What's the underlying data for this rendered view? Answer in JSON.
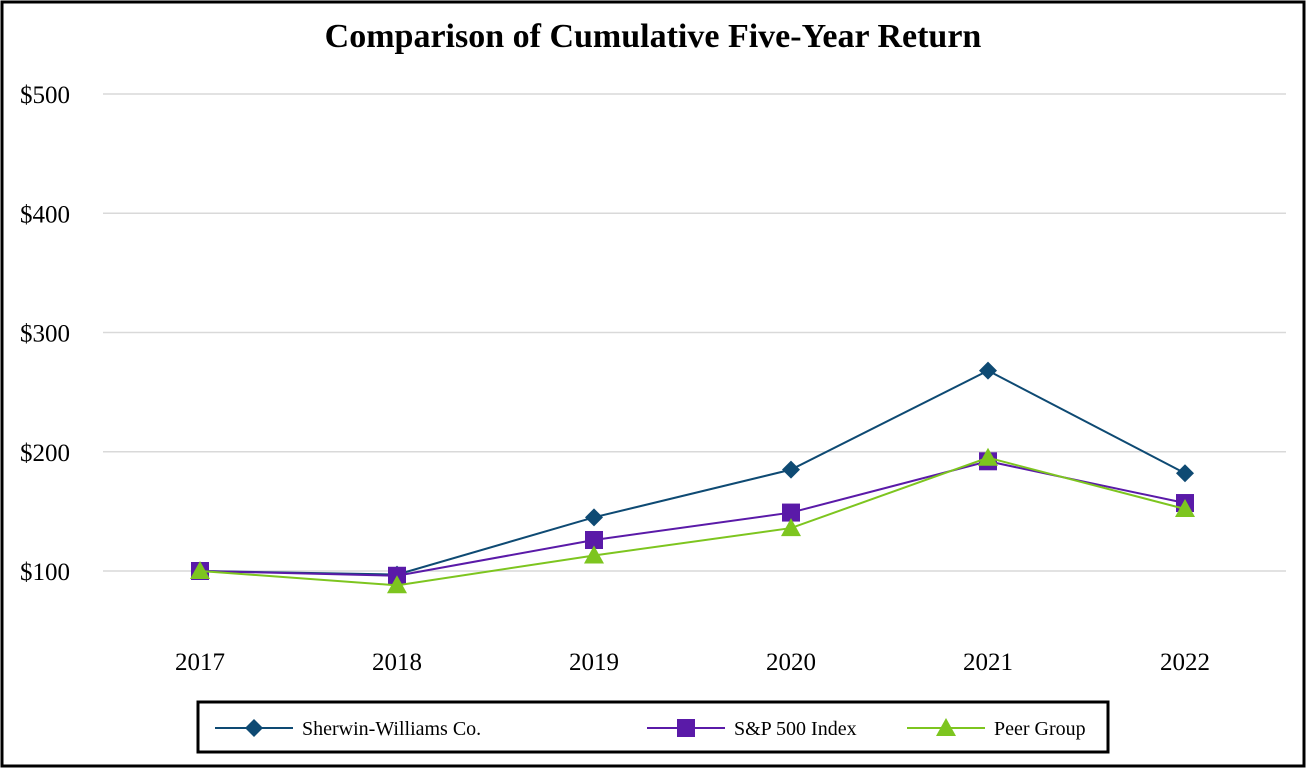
{
  "chart_data": {
    "type": "line",
    "title": "Comparison of Cumulative Five-Year Return",
    "xlabel": "",
    "ylabel": "",
    "categories": [
      "2017",
      "2018",
      "2019",
      "2020",
      "2021",
      "2022"
    ],
    "ylim": [
      0,
      500
    ],
    "yticks": [
      100,
      200,
      300,
      400,
      500
    ],
    "ytick_labels": [
      "$100",
      "$200",
      "$300",
      "$400",
      "$500"
    ],
    "grid": true,
    "legend_position": "bottom",
    "series": [
      {
        "name": "Sherwin-Williams Co.",
        "values": [
          100,
          97,
          145,
          185,
          268,
          182
        ],
        "color": "#0e4a73",
        "marker": "diamond"
      },
      {
        "name": "S&P 500 Index",
        "values": [
          100,
          96,
          126,
          149,
          192,
          157
        ],
        "color": "#5a1aa8",
        "marker": "square"
      },
      {
        "name": "Peer Group",
        "values": [
          100,
          88,
          113,
          136,
          195,
          152
        ],
        "color": "#7dc51f",
        "marker": "triangle"
      }
    ]
  }
}
